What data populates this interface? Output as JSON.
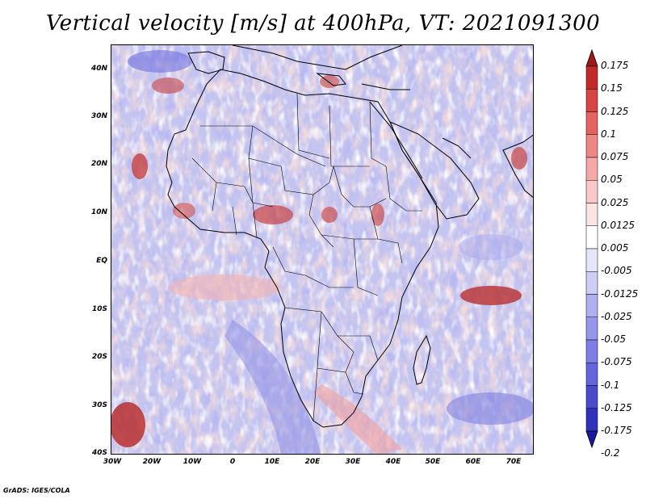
{
  "title": "Vertical velocity [m/s] at 400hPa, VT: 2021091300",
  "credit": "GrADS: IGES/COLA",
  "lat_labels": [
    "40N",
    "30N",
    "20N",
    "10N",
    "EQ",
    "10S",
    "20S",
    "30S",
    "40S"
  ],
  "lon_labels": [
    "30W",
    "20W",
    "10W",
    "0",
    "10E",
    "20E",
    "30E",
    "40E",
    "50E",
    "60E",
    "70E"
  ],
  "colorbar": {
    "labels": [
      "0.175",
      "0.15",
      "0.125",
      "0.1",
      "0.075",
      "0.05",
      "0.025",
      "0.0125",
      "0.005",
      "-0.005",
      "-0.0125",
      "-0.025",
      "-0.05",
      "-0.075",
      "-0.1",
      "-0.125",
      "-0.175",
      "-0.2"
    ],
    "colors": [
      "#a01818",
      "#c22a2a",
      "#d84545",
      "#e46464",
      "#ee8686",
      "#f4a8a8",
      "#f9c8c8",
      "#fde4e4",
      "#ffffff",
      "#e6e6fa",
      "#cdcdf5",
      "#b0b0f0",
      "#9696eb",
      "#7e7ee6",
      "#6464dc",
      "#4a4acb",
      "#3030b8",
      "#1818a0"
    ]
  }
}
